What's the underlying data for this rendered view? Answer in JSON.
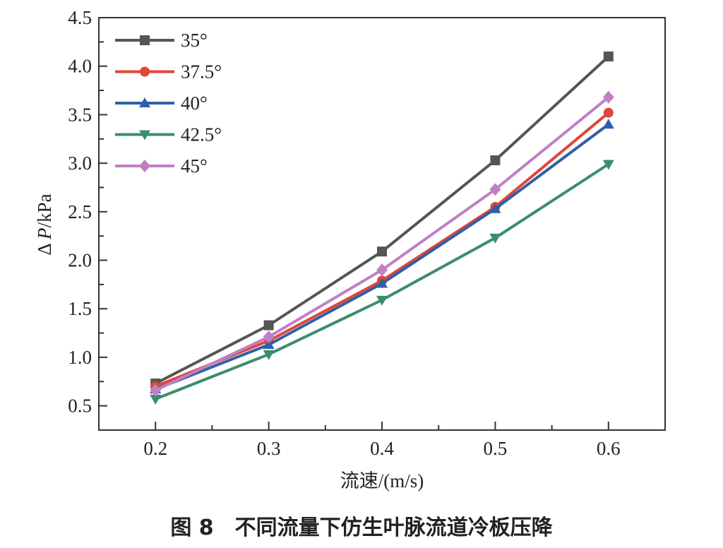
{
  "chart_data": {
    "type": "line",
    "title": "",
    "caption": {
      "figure": "图 8",
      "text": "不同流量下仿生叶脉流道冷板压降"
    },
    "xlabel": "流速/(m/s)",
    "ylabel_prefix": "Δ ",
    "ylabel_var": "P",
    "ylabel_unit": "/kPa",
    "x": [
      0.2,
      0.3,
      0.4,
      0.5,
      0.6
    ],
    "xticks": [
      "0.2",
      "0.3",
      "0.4",
      "0.5",
      "0.6"
    ],
    "yticks": [
      "0.5",
      "1.0",
      "1.5",
      "2.0",
      "2.5",
      "3.0",
      "3.5",
      "4.0",
      "4.5"
    ],
    "xlim": [
      0.15,
      0.65
    ],
    "ylim": [
      0.25,
      4.5
    ],
    "grid": false,
    "legend_position": "top-left",
    "series": [
      {
        "name": "35°",
        "marker": "square",
        "color": "#555555",
        "values": [
          0.73,
          1.33,
          2.09,
          3.03,
          4.1
        ]
      },
      {
        "name": "37.5°",
        "marker": "circle",
        "color": "#e0463a",
        "values": [
          0.7,
          1.17,
          1.79,
          2.55,
          3.52
        ]
      },
      {
        "name": "40°",
        "marker": "triangle-up",
        "color": "#2f5fa8",
        "values": [
          0.67,
          1.13,
          1.76,
          2.53,
          3.4
        ]
      },
      {
        "name": "42.5°",
        "marker": "triangle-down",
        "color": "#3c8c70",
        "values": [
          0.57,
          1.03,
          1.59,
          2.23,
          2.99
        ]
      },
      {
        "name": "45°",
        "marker": "diamond",
        "color": "#c07fc4",
        "values": [
          0.66,
          1.21,
          1.9,
          2.73,
          3.68
        ]
      }
    ]
  }
}
